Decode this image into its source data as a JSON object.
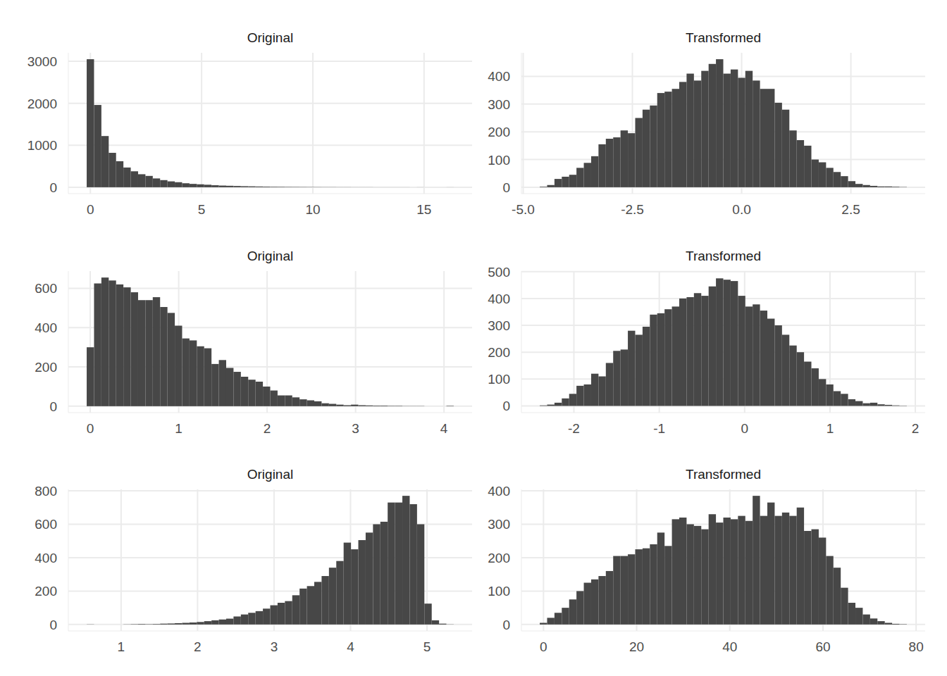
{
  "chart_data": [
    {
      "type": "histogram",
      "title": "Original",
      "color": "#474747",
      "grid": true,
      "bins": [
        -0.165,
        0.165,
        0.495,
        0.825,
        1.155,
        1.485,
        1.815,
        2.145,
        2.475,
        2.805,
        3.135,
        3.465,
        3.795,
        4.125,
        4.455,
        4.785,
        5.115,
        5.445,
        5.775,
        6.105,
        6.435,
        6.765,
        7.095,
        7.425,
        7.755,
        8.085,
        8.415,
        8.745,
        9.075,
        9.405,
        9.735,
        10.065,
        10.395,
        10.725,
        11.055,
        11.385,
        11.715,
        12.045,
        12.375,
        12.705,
        13.035,
        13.365,
        13.695,
        14.025,
        14.355,
        14.685,
        15.015,
        15.345,
        15.675,
        16.005,
        16.335
      ],
      "values": [
        3050,
        1960,
        1220,
        820,
        620,
        470,
        380,
        310,
        270,
        210,
        170,
        140,
        120,
        95,
        80,
        70,
        60,
        48,
        40,
        35,
        30,
        25,
        22,
        18,
        15,
        12,
        11,
        9,
        8,
        7,
        6,
        5,
        4,
        4,
        3,
        3,
        2,
        2,
        2,
        1,
        1,
        1,
        1,
        1,
        0,
        1,
        0,
        0,
        0,
        1
      ],
      "xlim": [
        -0.99,
        17.16
      ],
      "xticks": [
        0,
        5,
        10,
        15
      ],
      "ylim": [
        -152.5,
        3202.5
      ],
      "yticks": [
        0,
        1000,
        2000,
        3000
      ]
    },
    {
      "type": "histogram",
      "title": "Transformed",
      "color": "#474747",
      "grid": true,
      "bins": [
        -4.62,
        -4.452,
        -4.284,
        -4.116,
        -3.948,
        -3.78,
        -3.612,
        -3.444,
        -3.276,
        -3.108,
        -2.94,
        -2.772,
        -2.604,
        -2.436,
        -2.268,
        -2.1,
        -1.932,
        -1.764,
        -1.596,
        -1.428,
        -1.26,
        -1.092,
        -0.924,
        -0.756,
        -0.588,
        -0.42,
        -0.252,
        -0.084,
        0.084,
        0.252,
        0.42,
        0.588,
        0.756,
        0.924,
        1.092,
        1.26,
        1.428,
        1.596,
        1.764,
        1.932,
        2.1,
        2.268,
        2.436,
        2.604,
        2.772,
        2.94,
        3.108,
        3.276,
        3.444,
        3.612,
        3.78
      ],
      "values": [
        2,
        8,
        30,
        38,
        45,
        70,
        88,
        112,
        155,
        175,
        180,
        205,
        195,
        250,
        280,
        295,
        340,
        345,
        355,
        380,
        410,
        385,
        420,
        445,
        462,
        410,
        425,
        395,
        420,
        385,
        355,
        355,
        305,
        280,
        205,
        170,
        150,
        100,
        90,
        70,
        55,
        40,
        22,
        12,
        8,
        5,
        3,
        3,
        2,
        1
      ],
      "xlim": [
        -5.04,
        4.2
      ],
      "xticks": [
        {
          "value": -5,
          "label": "-5.0"
        },
        -2.5,
        {
          "value": 0,
          "label": "0.0"
        },
        2.5
      ],
      "ylim": [
        -23.1,
        485.1
      ],
      "yticks": [
        0,
        100,
        200,
        300,
        400
      ]
    },
    {
      "type": "histogram",
      "title": "Original",
      "color": "#474747",
      "grid": true,
      "bins": [
        -0.04,
        0.043,
        0.126,
        0.209,
        0.292,
        0.375,
        0.458,
        0.541,
        0.624,
        0.707,
        0.79,
        0.873,
        0.956,
        1.039,
        1.122,
        1.205,
        1.288,
        1.371,
        1.454,
        1.537,
        1.62,
        1.703,
        1.786,
        1.869,
        1.952,
        2.035,
        2.118,
        2.201,
        2.284,
        2.367,
        2.45,
        2.533,
        2.616,
        2.699,
        2.782,
        2.865,
        2.948,
        3.031,
        3.114,
        3.197,
        3.28,
        3.363,
        3.446,
        3.529,
        3.612,
        3.695,
        3.778,
        3.861,
        3.944,
        4.027,
        4.11
      ],
      "values": [
        300,
        625,
        655,
        640,
        620,
        605,
        580,
        540,
        540,
        555,
        505,
        475,
        410,
        345,
        335,
        305,
        295,
        215,
        235,
        195,
        175,
        150,
        135,
        125,
        100,
        80,
        55,
        55,
        45,
        35,
        30,
        25,
        15,
        12,
        8,
        5,
        8,
        5,
        4,
        3,
        3,
        2,
        2,
        1,
        1,
        1,
        0,
        0,
        0,
        2
      ],
      "xlim": [
        -0.2475,
        4.3175
      ],
      "xticks": [
        0,
        1,
        2,
        3,
        4
      ],
      "ylim": [
        -32.75,
        687.75
      ],
      "yticks": [
        0,
        200,
        400,
        600
      ]
    },
    {
      "type": "histogram",
      "title": "Transformed",
      "color": "#474747",
      "grid": true,
      "bins": [
        -2.4,
        -2.314,
        -2.228,
        -2.142,
        -2.056,
        -1.97,
        -1.884,
        -1.798,
        -1.712,
        -1.626,
        -1.54,
        -1.454,
        -1.368,
        -1.282,
        -1.196,
        -1.11,
        -1.024,
        -0.938,
        -0.852,
        -0.766,
        -0.68,
        -0.594,
        -0.508,
        -0.422,
        -0.336,
        -0.25,
        -0.164,
        -0.078,
        0.008,
        0.094,
        0.18,
        0.266,
        0.352,
        0.438,
        0.524,
        0.61,
        0.696,
        0.782,
        0.868,
        0.954,
        1.04,
        1.126,
        1.212,
        1.298,
        1.384,
        1.47,
        1.556,
        1.642,
        1.728,
        1.814,
        1.9
      ],
      "values": [
        2,
        5,
        12,
        28,
        45,
        75,
        80,
        120,
        110,
        160,
        205,
        210,
        280,
        265,
        295,
        340,
        345,
        360,
        370,
        400,
        405,
        420,
        410,
        445,
        475,
        470,
        465,
        410,
        370,
        378,
        355,
        325,
        300,
        265,
        225,
        200,
        165,
        140,
        100,
        80,
        55,
        45,
        25,
        18,
        10,
        12,
        6,
        4,
        2,
        1
      ],
      "xlim": [
        -2.615,
        2.115
      ],
      "xticks": [
        -2,
        -1,
        0,
        1,
        2
      ],
      "ylim": [
        -25,
        502
      ],
      "yticks": [
        0,
        100,
        200,
        300,
        400,
        500
      ]
    },
    {
      "type": "histogram",
      "title": "Original",
      "color": "#474747",
      "grid": true,
      "bins": [
        0.55,
        0.646,
        0.742,
        0.838,
        0.934,
        1.03,
        1.126,
        1.222,
        1.318,
        1.414,
        1.51,
        1.606,
        1.702,
        1.798,
        1.894,
        1.99,
        2.086,
        2.182,
        2.278,
        2.374,
        2.47,
        2.566,
        2.662,
        2.758,
        2.854,
        2.95,
        3.046,
        3.142,
        3.238,
        3.334,
        3.43,
        3.526,
        3.622,
        3.718,
        3.814,
        3.91,
        4.006,
        4.102,
        4.198,
        4.294,
        4.39,
        4.486,
        4.582,
        4.678,
        4.774,
        4.87,
        4.966,
        5.062,
        5.158,
        5.254,
        5.35
      ],
      "values": [
        1,
        0,
        0,
        0,
        0,
        1,
        2,
        3,
        2,
        3,
        5,
        6,
        8,
        10,
        12,
        15,
        20,
        25,
        30,
        35,
        48,
        60,
        70,
        80,
        95,
        115,
        130,
        140,
        175,
        215,
        230,
        255,
        290,
        340,
        380,
        490,
        450,
        505,
        550,
        600,
        615,
        730,
        730,
        770,
        720,
        600,
        125,
        25,
        5,
        1
      ],
      "xlim": [
        0.31,
        5.59
      ],
      "xticks": [
        1,
        2,
        3,
        4,
        5
      ],
      "ylim": [
        -38.5,
        808.5
      ],
      "yticks": [
        0,
        200,
        400,
        600,
        800
      ]
    },
    {
      "type": "histogram",
      "title": "Transformed",
      "color": "#474747",
      "grid": true,
      "bins": [
        -0.8,
        0.776,
        2.352,
        3.928,
        5.504,
        7.08,
        8.656,
        10.232,
        11.808,
        13.384,
        14.96,
        16.536,
        18.112,
        19.688,
        21.264,
        22.84,
        24.416,
        25.992,
        27.568,
        29.144,
        30.72,
        32.296,
        33.872,
        35.448,
        37.024,
        38.6,
        40.176,
        41.752,
        43.328,
        44.904,
        46.48,
        48.056,
        49.632,
        51.208,
        52.784,
        54.36,
        55.936,
        57.512,
        59.088,
        60.664,
        62.24,
        63.816,
        65.392,
        66.968,
        68.544,
        70.12,
        71.696,
        73.272,
        74.848,
        76.424,
        78.0
      ],
      "values": [
        5,
        20,
        35,
        50,
        75,
        100,
        125,
        135,
        145,
        160,
        205,
        205,
        210,
        225,
        228,
        240,
        275,
        235,
        315,
        320,
        300,
        295,
        285,
        330,
        305,
        320,
        315,
        325,
        310,
        385,
        325,
        365,
        325,
        335,
        325,
        350,
        280,
        285,
        260,
        205,
        170,
        110,
        65,
        50,
        30,
        18,
        10,
        5,
        2,
        1
      ],
      "xlim": [
        -4.74,
        81.94
      ],
      "xticks": [
        0,
        20,
        40,
        60,
        80
      ],
      "ylim": [
        -19.25,
        404.25
      ],
      "yticks": [
        0,
        100,
        200,
        300,
        400
      ]
    }
  ]
}
